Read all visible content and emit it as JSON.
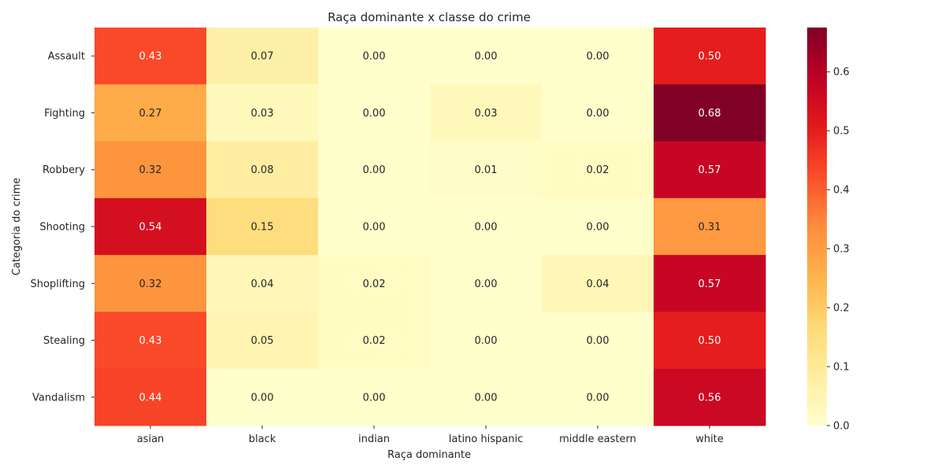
{
  "chart_data": {
    "type": "heatmap",
    "title": "Raça dominante x classe do crime",
    "xlabel": "Raça dominante",
    "ylabel": "Categoria do crime",
    "x_categories": [
      "asian",
      "black",
      "indian",
      "latino hispanic",
      "middle eastern",
      "white"
    ],
    "y_categories": [
      "Assault",
      "Fighting",
      "Robbery",
      "Shooting",
      "Shoplifting",
      "Stealing",
      "Vandalism"
    ],
    "values": [
      [
        0.43,
        0.07,
        0.0,
        0.0,
        0.0,
        0.5
      ],
      [
        0.27,
        0.03,
        0.0,
        0.03,
        0.0,
        0.68
      ],
      [
        0.32,
        0.08,
        0.0,
        0.01,
        0.02,
        0.57
      ],
      [
        0.54,
        0.15,
        0.0,
        0.0,
        0.0,
        0.31
      ],
      [
        0.32,
        0.04,
        0.02,
        0.0,
        0.04,
        0.57
      ],
      [
        0.43,
        0.05,
        0.02,
        0.0,
        0.0,
        0.5
      ],
      [
        0.44,
        0.0,
        0.0,
        0.0,
        0.0,
        0.56
      ]
    ],
    "colormap": "YlOrRd",
    "color_range": [
      0,
      0.675
    ],
    "colorbar_ticks": [
      "0.0",
      "0.1",
      "0.2",
      "0.3",
      "0.4",
      "0.5",
      "0.6"
    ],
    "annotation_light_color": "#ffffff",
    "annotation_dark_color": "#262626"
  }
}
